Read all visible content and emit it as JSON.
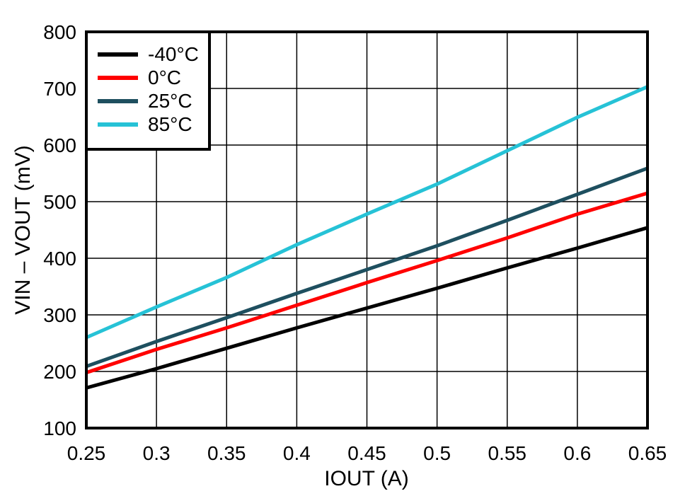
{
  "chart_data": {
    "type": "line",
    "title": "",
    "xlabel": "IOUT (A)",
    "ylabel": "VIN – VOUT (mV)",
    "xlim": [
      0.25,
      0.65
    ],
    "ylim": [
      100,
      800
    ],
    "x_tick_labels": [
      "0.25",
      "0.3",
      "0.35",
      "0.4",
      "0.45",
      "0.5",
      "0.55",
      "0.6",
      "0.65"
    ],
    "x_ticks": [
      0.25,
      0.3,
      0.35,
      0.4,
      0.45,
      0.5,
      0.55,
      0.6,
      0.65
    ],
    "y_ticks": [
      100,
      200,
      300,
      400,
      500,
      600,
      700,
      800
    ],
    "y_tick_labels": [
      "100",
      "200",
      "300",
      "400",
      "500",
      "600",
      "700",
      "800"
    ],
    "grid": true,
    "legend_position": "top-left",
    "x": [
      0.25,
      0.3,
      0.35,
      0.4,
      0.45,
      0.5,
      0.55,
      0.6,
      0.65
    ],
    "series": [
      {
        "name": "-40°C",
        "color": "#000000",
        "values": [
          171,
          205,
          241,
          277,
          312,
          347,
          383,
          418,
          454
        ]
      },
      {
        "name": "0°C",
        "color": "#FF0000",
        "values": [
          198,
          239,
          277,
          317,
          357,
          396,
          436,
          478,
          515
        ]
      },
      {
        "name": "25°C",
        "color": "#1E4F5F",
        "values": [
          209,
          253,
          295,
          338,
          380,
          422,
          467,
          513,
          559
        ]
      },
      {
        "name": "85°C",
        "color": "#26C2D6",
        "values": [
          260,
          314,
          366,
          424,
          478,
          531,
          590,
          649,
          703
        ]
      }
    ],
    "colors": {
      "background": "#FFFFFF",
      "frame": "#000000",
      "gridline": "#000000",
      "text": "#000000"
    }
  }
}
